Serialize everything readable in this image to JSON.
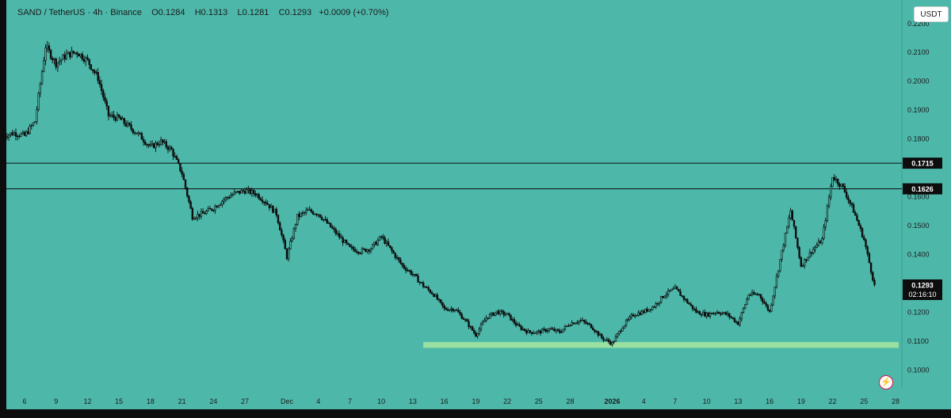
{
  "header": {
    "symbol": "SAND / TetherUS",
    "interval": "4h",
    "exchange": "Binance",
    "open": "O0.1284",
    "high": "H0.1313",
    "low": "L0.1281",
    "close": "C0.1293",
    "change": "+0.0009 (+0.70%)"
  },
  "currency_button": "USDT",
  "colors": {
    "background": "#4db8aa",
    "candle": "#0d0d0d",
    "zone": "#a8e6a0",
    "frame": "#0d0d0d"
  },
  "icons": {
    "flash": "lightning-icon"
  },
  "chart_data": {
    "type": "candlestick",
    "title": "SAND / TetherUS · 4h · Binance",
    "ylim": [
      0.095,
      0.222
    ],
    "y_ticks": [
      "0.2200",
      "0.2100",
      "0.2000",
      "0.1900",
      "0.1800",
      "0.1600",
      "0.1500",
      "0.1400",
      "0.1200",
      "0.1100",
      "0.1000"
    ],
    "x_ticks": [
      "6",
      "9",
      "12",
      "15",
      "18",
      "21",
      "24",
      "27",
      "Dec",
      "4",
      "7",
      "10",
      "13",
      "16",
      "19",
      "22",
      "25",
      "28",
      "2026",
      "4",
      "7",
      "10",
      "13",
      "16",
      "19",
      "22",
      "25",
      "28"
    ],
    "horizontal_lines": [
      {
        "label": "0.1715",
        "value": 0.1715
      },
      {
        "label": "0.1626",
        "value": 0.1626
      }
    ],
    "last_price": {
      "label": "0.1293",
      "value": 0.1293,
      "countdown": "02:16:10"
    },
    "support_zone": {
      "from": 0.1075,
      "to": 0.1095,
      "start": "Dec 14",
      "end": "28"
    },
    "price_path": [
      {
        "day": "Nov 4",
        "price": 0.181
      },
      {
        "day": "Nov 5",
        "price": 0.182
      },
      {
        "day": "Nov 6",
        "price": 0.181
      },
      {
        "day": "Nov 7",
        "price": 0.186
      },
      {
        "day": "Nov 8",
        "price": 0.212
      },
      {
        "day": "Nov 9",
        "price": 0.206
      },
      {
        "day": "Nov 10",
        "price": 0.209
      },
      {
        "day": "Nov 11",
        "price": 0.21
      },
      {
        "day": "Nov 12",
        "price": 0.207
      },
      {
        "day": "Nov 13",
        "price": 0.201
      },
      {
        "day": "Nov 14",
        "price": 0.188
      },
      {
        "day": "Nov 15",
        "price": 0.187
      },
      {
        "day": "Nov 16",
        "price": 0.184
      },
      {
        "day": "Nov 17",
        "price": 0.181
      },
      {
        "day": "Nov 18",
        "price": 0.177
      },
      {
        "day": "Nov 19",
        "price": 0.179
      },
      {
        "day": "Nov 20",
        "price": 0.176
      },
      {
        "day": "Nov 21",
        "price": 0.168
      },
      {
        "day": "Nov 22",
        "price": 0.153
      },
      {
        "day": "Nov 23",
        "price": 0.154
      },
      {
        "day": "Nov 24",
        "price": 0.156
      },
      {
        "day": "Nov 25",
        "price": 0.159
      },
      {
        "day": "Nov 26",
        "price": 0.161
      },
      {
        "day": "Nov 27",
        "price": 0.162
      },
      {
        "day": "Nov 28",
        "price": 0.161
      },
      {
        "day": "Nov 29",
        "price": 0.158
      },
      {
        "day": "Nov 30",
        "price": 0.154
      },
      {
        "day": "Dec 1",
        "price": 0.139
      },
      {
        "day": "Dec 2",
        "price": 0.153
      },
      {
        "day": "Dec 3",
        "price": 0.155
      },
      {
        "day": "Dec 4",
        "price": 0.154
      },
      {
        "day": "Dec 5",
        "price": 0.15
      },
      {
        "day": "Dec 6",
        "price": 0.146
      },
      {
        "day": "Dec 7",
        "price": 0.142
      },
      {
        "day": "Dec 8",
        "price": 0.141
      },
      {
        "day": "Dec 9",
        "price": 0.142
      },
      {
        "day": "Dec 10",
        "price": 0.146
      },
      {
        "day": "Dec 11",
        "price": 0.141
      },
      {
        "day": "Dec 12",
        "price": 0.136
      },
      {
        "day": "Dec 13",
        "price": 0.133
      },
      {
        "day": "Dec 14",
        "price": 0.129
      },
      {
        "day": "Dec 15",
        "price": 0.126
      },
      {
        "day": "Dec 16",
        "price": 0.121
      },
      {
        "day": "Dec 17",
        "price": 0.121
      },
      {
        "day": "Dec 18",
        "price": 0.117
      },
      {
        "day": "Dec 19",
        "price": 0.112
      },
      {
        "day": "Dec 20",
        "price": 0.118
      },
      {
        "day": "Dec 21",
        "price": 0.12
      },
      {
        "day": "Dec 22",
        "price": 0.119
      },
      {
        "day": "Dec 23",
        "price": 0.115
      },
      {
        "day": "Dec 24",
        "price": 0.113
      },
      {
        "day": "Dec 25",
        "price": 0.113
      },
      {
        "day": "Dec 26",
        "price": 0.114
      },
      {
        "day": "Dec 27",
        "price": 0.113
      },
      {
        "day": "Dec 28",
        "price": 0.116
      },
      {
        "day": "Dec 29",
        "price": 0.117
      },
      {
        "day": "Dec 30",
        "price": 0.115
      },
      {
        "day": "Dec 31",
        "price": 0.111
      },
      {
        "day": "Jan 1",
        "price": 0.109
      },
      {
        "day": "Jan 2",
        "price": 0.115
      },
      {
        "day": "Jan 3",
        "price": 0.119
      },
      {
        "day": "Jan 4",
        "price": 0.12
      },
      {
        "day": "Jan 5",
        "price": 0.122
      },
      {
        "day": "Jan 6",
        "price": 0.126
      },
      {
        "day": "Jan 7",
        "price": 0.128
      },
      {
        "day": "Jan 8",
        "price": 0.124
      },
      {
        "day": "Jan 9",
        "price": 0.12
      },
      {
        "day": "Jan 10",
        "price": 0.119
      },
      {
        "day": "Jan 11",
        "price": 0.12
      },
      {
        "day": "Jan 12",
        "price": 0.119
      },
      {
        "day": "Jan 13",
        "price": 0.116
      },
      {
        "day": "Jan 14",
        "price": 0.126
      },
      {
        "day": "Jan 15",
        "price": 0.126
      },
      {
        "day": "Jan 16",
        "price": 0.12
      },
      {
        "day": "Jan 17",
        "price": 0.138
      },
      {
        "day": "Jan 18",
        "price": 0.155
      },
      {
        "day": "Jan 19",
        "price": 0.136
      },
      {
        "day": "Jan 20",
        "price": 0.141
      },
      {
        "day": "Jan 21",
        "price": 0.145
      },
      {
        "day": "Jan 22",
        "price": 0.167
      },
      {
        "day": "Jan 23",
        "price": 0.163
      },
      {
        "day": "Jan 24",
        "price": 0.155
      },
      {
        "day": "Jan 25",
        "price": 0.145
      },
      {
        "day": "Jan 26",
        "price": 0.129
      }
    ]
  }
}
